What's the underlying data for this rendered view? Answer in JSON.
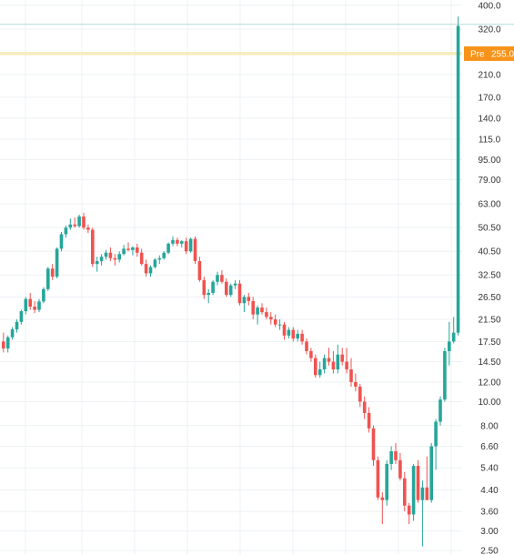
{
  "chart_data": {
    "type": "candlestick",
    "y_scale": "log",
    "y_axis_position": "right",
    "ylim": [
      2.4,
      420
    ],
    "y_ticks": [
      "400.0",
      "320.0",
      "255.0",
      "210.0",
      "170.0",
      "140.0",
      "115.0",
      "95.00",
      "79.00",
      "63.00",
      "50.50",
      "40.50",
      "32.50",
      "26.50",
      "21.50",
      "17.50",
      "14.50",
      "12.00",
      "10.00",
      "8.00",
      "6.60",
      "5.40",
      "4.40",
      "3.60",
      "3.00",
      "2.50"
    ],
    "grid": true,
    "colors": {
      "up": "#26a69a",
      "down": "#ef5350",
      "premarket": "#f7931a",
      "grid": "#eef1f4",
      "high_line": "#b2dfdb",
      "pre_line": "#f5e68c"
    },
    "premarket": {
      "label": "Pre",
      "value": "255.0",
      "price": 255
    },
    "high_line_price": 335,
    "candles": [
      {
        "o": 17.5,
        "h": 19.0,
        "l": 15.8,
        "c": 16.4
      },
      {
        "o": 16.4,
        "h": 18.5,
        "l": 15.8,
        "c": 18.2
      },
      {
        "o": 18.2,
        "h": 20.0,
        "l": 17.8,
        "c": 19.6
      },
      {
        "o": 19.6,
        "h": 21.5,
        "l": 19.0,
        "c": 21.0
      },
      {
        "o": 21.0,
        "h": 23.5,
        "l": 20.5,
        "c": 23.2
      },
      {
        "o": 23.2,
        "h": 26.5,
        "l": 22.5,
        "c": 26.0
      },
      {
        "o": 26.0,
        "h": 27.5,
        "l": 23.5,
        "c": 24.2
      },
      {
        "o": 24.2,
        "h": 25.5,
        "l": 22.8,
        "c": 23.5
      },
      {
        "o": 23.5,
        "h": 26.0,
        "l": 23.0,
        "c": 25.4
      },
      {
        "o": 25.4,
        "h": 29.0,
        "l": 25.0,
        "c": 28.5
      },
      {
        "o": 28.5,
        "h": 35.0,
        "l": 28.0,
        "c": 34.5
      },
      {
        "o": 34.5,
        "h": 36.0,
        "l": 31.0,
        "c": 32.0
      },
      {
        "o": 32.0,
        "h": 42.0,
        "l": 31.5,
        "c": 41.5
      },
      {
        "o": 41.5,
        "h": 48.5,
        "l": 40.5,
        "c": 47.5
      },
      {
        "o": 47.5,
        "h": 51.5,
        "l": 46.0,
        "c": 50.5
      },
      {
        "o": 50.5,
        "h": 55.0,
        "l": 49.5,
        "c": 52.0
      },
      {
        "o": 52.0,
        "h": 55.5,
        "l": 50.5,
        "c": 51.2
      },
      {
        "o": 51.2,
        "h": 57.0,
        "l": 50.5,
        "c": 56.0
      },
      {
        "o": 56.0,
        "h": 58.0,
        "l": 49.5,
        "c": 50.5
      },
      {
        "o": 50.5,
        "h": 52.0,
        "l": 48.0,
        "c": 49.5
      },
      {
        "o": 49.5,
        "h": 50.5,
        "l": 35.0,
        "c": 36.0
      },
      {
        "o": 36.0,
        "h": 38.5,
        "l": 33.5,
        "c": 37.0
      },
      {
        "o": 37.0,
        "h": 39.5,
        "l": 35.5,
        "c": 38.5
      },
      {
        "o": 38.5,
        "h": 41.0,
        "l": 37.5,
        "c": 40.0
      },
      {
        "o": 40.0,
        "h": 42.0,
        "l": 37.0,
        "c": 38.0
      },
      {
        "o": 38.0,
        "h": 39.5,
        "l": 35.5,
        "c": 37.5
      },
      {
        "o": 37.5,
        "h": 40.5,
        "l": 36.5,
        "c": 39.5
      },
      {
        "o": 39.5,
        "h": 43.0,
        "l": 39.0,
        "c": 41.5
      },
      {
        "o": 41.5,
        "h": 44.0,
        "l": 40.5,
        "c": 41.0
      },
      {
        "o": 41.0,
        "h": 42.5,
        "l": 39.0,
        "c": 42.0
      },
      {
        "o": 42.0,
        "h": 43.5,
        "l": 38.5,
        "c": 40.0
      },
      {
        "o": 40.0,
        "h": 41.5,
        "l": 35.5,
        "c": 36.0
      },
      {
        "o": 36.0,
        "h": 37.5,
        "l": 32.0,
        "c": 33.0
      },
      {
        "o": 33.0,
        "h": 35.5,
        "l": 32.0,
        "c": 35.0
      },
      {
        "o": 35.0,
        "h": 38.0,
        "l": 34.5,
        "c": 37.5
      },
      {
        "o": 37.5,
        "h": 39.0,
        "l": 36.0,
        "c": 38.0
      },
      {
        "o": 38.0,
        "h": 40.5,
        "l": 37.5,
        "c": 40.0
      },
      {
        "o": 40.0,
        "h": 44.0,
        "l": 39.5,
        "c": 43.5
      },
      {
        "o": 43.5,
        "h": 46.5,
        "l": 42.5,
        "c": 45.0
      },
      {
        "o": 45.0,
        "h": 46.0,
        "l": 42.5,
        "c": 43.5
      },
      {
        "o": 43.5,
        "h": 45.0,
        "l": 42.0,
        "c": 44.5
      },
      {
        "o": 44.5,
        "h": 46.0,
        "l": 39.5,
        "c": 40.5
      },
      {
        "o": 40.5,
        "h": 46.0,
        "l": 40.0,
        "c": 45.5
      },
      {
        "o": 45.5,
        "h": 46.5,
        "l": 36.0,
        "c": 37.0
      },
      {
        "o": 37.0,
        "h": 38.5,
        "l": 30.5,
        "c": 31.0
      },
      {
        "o": 31.0,
        "h": 32.0,
        "l": 26.0,
        "c": 27.0
      },
      {
        "o": 27.0,
        "h": 28.5,
        "l": 25.0,
        "c": 27.5
      },
      {
        "o": 27.5,
        "h": 31.0,
        "l": 27.0,
        "c": 30.5
      },
      {
        "o": 30.5,
        "h": 33.5,
        "l": 29.5,
        "c": 32.5
      },
      {
        "o": 32.5,
        "h": 34.0,
        "l": 30.0,
        "c": 30.5
      },
      {
        "o": 30.5,
        "h": 31.5,
        "l": 26.5,
        "c": 27.0
      },
      {
        "o": 27.0,
        "h": 30.0,
        "l": 26.5,
        "c": 29.5
      },
      {
        "o": 29.5,
        "h": 31.0,
        "l": 28.5,
        "c": 30.0
      },
      {
        "o": 30.0,
        "h": 31.0,
        "l": 24.5,
        "c": 25.0
      },
      {
        "o": 25.0,
        "h": 27.0,
        "l": 23.0,
        "c": 26.5
      },
      {
        "o": 26.5,
        "h": 27.5,
        "l": 24.5,
        "c": 25.5
      },
      {
        "o": 25.5,
        "h": 26.5,
        "l": 21.5,
        "c": 22.5
      },
      {
        "o": 22.5,
        "h": 24.5,
        "l": 20.5,
        "c": 24.0
      },
      {
        "o": 24.0,
        "h": 25.0,
        "l": 22.5,
        "c": 23.0
      },
      {
        "o": 23.0,
        "h": 24.0,
        "l": 21.5,
        "c": 22.0
      },
      {
        "o": 22.0,
        "h": 23.0,
        "l": 20.5,
        "c": 21.5
      },
      {
        "o": 21.5,
        "h": 22.5,
        "l": 20.0,
        "c": 20.5
      },
      {
        "o": 20.5,
        "h": 21.5,
        "l": 19.5,
        "c": 20.5
      },
      {
        "o": 20.5,
        "h": 21.0,
        "l": 17.8,
        "c": 18.5
      },
      {
        "o": 18.5,
        "h": 20.0,
        "l": 18.0,
        "c": 19.5
      },
      {
        "o": 19.5,
        "h": 20.0,
        "l": 17.5,
        "c": 18.0
      },
      {
        "o": 18.0,
        "h": 19.5,
        "l": 17.5,
        "c": 18.8
      },
      {
        "o": 18.8,
        "h": 19.5,
        "l": 17.0,
        "c": 17.5
      },
      {
        "o": 17.5,
        "h": 18.0,
        "l": 15.5,
        "c": 16.0
      },
      {
        "o": 16.0,
        "h": 16.5,
        "l": 14.5,
        "c": 15.0
      },
      {
        "o": 15.0,
        "h": 15.5,
        "l": 12.5,
        "c": 12.8
      },
      {
        "o": 12.8,
        "h": 14.5,
        "l": 12.5,
        "c": 13.5
      },
      {
        "o": 13.5,
        "h": 15.5,
        "l": 13.0,
        "c": 15.0
      },
      {
        "o": 15.0,
        "h": 16.5,
        "l": 14.0,
        "c": 14.5
      },
      {
        "o": 14.5,
        "h": 16.0,
        "l": 13.0,
        "c": 13.5
      },
      {
        "o": 13.5,
        "h": 17.0,
        "l": 13.0,
        "c": 15.5
      },
      {
        "o": 15.5,
        "h": 16.5,
        "l": 14.0,
        "c": 14.5
      },
      {
        "o": 14.5,
        "h": 16.5,
        "l": 13.0,
        "c": 13.5
      },
      {
        "o": 13.5,
        "h": 15.0,
        "l": 11.5,
        "c": 12.0
      },
      {
        "o": 12.0,
        "h": 13.0,
        "l": 11.0,
        "c": 11.5
      },
      {
        "o": 11.5,
        "h": 11.8,
        "l": 9.5,
        "c": 10.0
      },
      {
        "o": 10.0,
        "h": 10.5,
        "l": 8.5,
        "c": 9.0
      },
      {
        "o": 9.0,
        "h": 9.5,
        "l": 7.5,
        "c": 7.8
      },
      {
        "o": 7.8,
        "h": 8.0,
        "l": 5.5,
        "c": 5.8
      },
      {
        "o": 5.8,
        "h": 6.0,
        "l": 4.0,
        "c": 4.1
      },
      {
        "o": 4.1,
        "h": 4.3,
        "l": 3.2,
        "c": 4.0
      },
      {
        "o": 4.0,
        "h": 5.8,
        "l": 3.8,
        "c": 5.6
      },
      {
        "o": 5.6,
        "h": 6.6,
        "l": 5.3,
        "c": 6.3
      },
      {
        "o": 6.3,
        "h": 6.8,
        "l": 5.6,
        "c": 5.8
      },
      {
        "o": 5.8,
        "h": 6.2,
        "l": 4.8,
        "c": 4.9
      },
      {
        "o": 4.9,
        "h": 5.2,
        "l": 3.6,
        "c": 3.8
      },
      {
        "o": 3.8,
        "h": 3.9,
        "l": 3.2,
        "c": 3.5
      },
      {
        "o": 3.5,
        "h": 5.6,
        "l": 3.3,
        "c": 5.5
      },
      {
        "o": 5.5,
        "h": 5.8,
        "l": 3.9,
        "c": 4.0
      },
      {
        "o": 4.0,
        "h": 4.8,
        "l": 2.6,
        "c": 4.5
      },
      {
        "o": 4.5,
        "h": 6.0,
        "l": 4.0,
        "c": 4.0
      },
      {
        "o": 4.0,
        "h": 6.8,
        "l": 3.9,
        "c": 6.6
      },
      {
        "o": 6.6,
        "h": 8.5,
        "l": 5.3,
        "c": 8.3
      },
      {
        "o": 8.3,
        "h": 10.5,
        "l": 8.0,
        "c": 10.2
      },
      {
        "o": 10.2,
        "h": 16.5,
        "l": 10.0,
        "c": 16.0
      },
      {
        "o": 16.0,
        "h": 21.0,
        "l": 14.0,
        "c": 17.5
      },
      {
        "o": 17.5,
        "h": 22.0,
        "l": 17.2,
        "c": 19.0
      },
      {
        "o": 19.0,
        "h": 360.0,
        "l": 18.5,
        "c": 330.0
      }
    ]
  }
}
